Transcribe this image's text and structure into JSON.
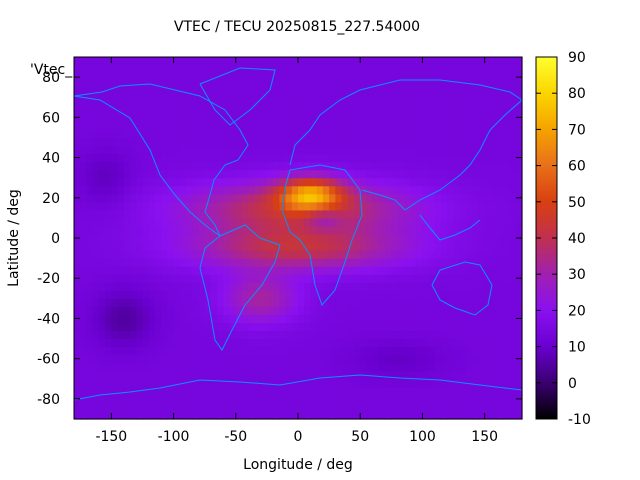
{
  "chart_data": {
    "type": "heatmap",
    "title": "VTEC / TECU 20250815_227.54000",
    "xlabel": "Longitude / deg",
    "ylabel": "Latitude / deg",
    "xlim": [
      -180,
      180
    ],
    "ylim": [
      -90,
      90
    ],
    "xticks": [
      -150,
      -100,
      -50,
      0,
      50,
      100,
      150
    ],
    "yticks": [
      -80,
      -60,
      -40,
      -20,
      0,
      20,
      40,
      60,
      80
    ],
    "colorbar": {
      "range": [
        -10,
        90
      ],
      "ticks": [
        -10,
        0,
        10,
        20,
        30,
        40,
        50,
        60,
        70,
        80,
        90
      ],
      "palette": [
        "#000000",
        "#3a0070",
        "#6a00d0",
        "#8a10f0",
        "#a020b0",
        "#c03050",
        "#d84010",
        "#e8701a",
        "#f5a200",
        "#fbd500",
        "#ffff30"
      ]
    },
    "key_label": "'Vtec_",
    "grid": false,
    "legend": "top-left",
    "field": {
      "background": 14,
      "features": [
        {
          "name": "equatorial-anomaly-core",
          "lon": 10,
          "lat": 22,
          "peak": 42,
          "spread_lon": 25,
          "spread_lat": 8
        },
        {
          "name": "equatorial-band-north",
          "lon": 0,
          "lat": 15,
          "peak": 28,
          "spread_lon": 90,
          "spread_lat": 13
        },
        {
          "name": "equatorial-band-south",
          "lon": 0,
          "lat": -5,
          "peak": 26,
          "spread_lon": 85,
          "spread_lat": 11
        },
        {
          "name": "south-atlantic-extension",
          "lon": -30,
          "lat": -30,
          "peak": 18,
          "spread_lon": 30,
          "spread_lat": 12
        },
        {
          "name": "pacific-low",
          "lon": -140,
          "lat": -40,
          "peak": -9,
          "spread_lon": 25,
          "spread_lat": 15
        },
        {
          "name": "north-pacific-low",
          "lon": -155,
          "lat": 30,
          "peak": -6,
          "spread_lon": 22,
          "spread_lat": 15
        },
        {
          "name": "southern-ocean-low",
          "lon": 80,
          "lat": -60,
          "peak": -5,
          "spread_lon": 40,
          "spread_lat": 10
        },
        {
          "name": "trough-center",
          "lon": 20,
          "lat": 10,
          "peak": -12,
          "spread_lon": 15,
          "spread_lat": 6
        }
      ]
    }
  }
}
